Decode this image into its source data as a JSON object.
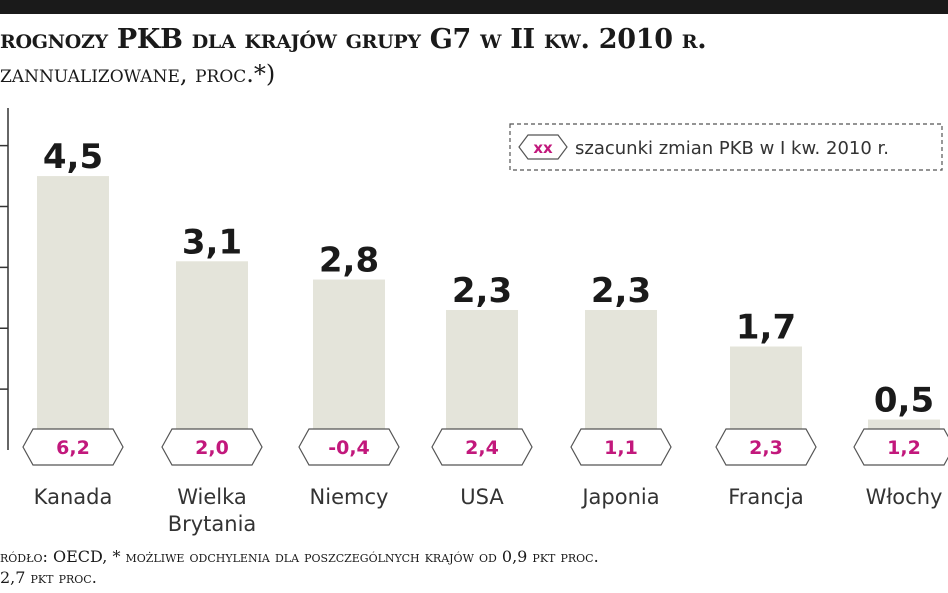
{
  "header": {
    "title": "rognozy PKB dla krajów grupy G7 w II kw. 2010 r.",
    "subtitle": "zannualizowane, proc.*)"
  },
  "legend": {
    "badge": "xx",
    "text": "szacunki zmian PKB w I kw. 2010 r."
  },
  "footer": {
    "line1": "ródło: OECD, * możliwe odchylenia dla poszczególnych krajów od 0,9 pkt proc.",
    "line2": "2,7 pkt proc."
  },
  "colors": {
    "bar": "#e4e4da",
    "badge_text": "#c2187c",
    "axis": "#333333",
    "top_bar": "#1a1a1a"
  },
  "chart_data": {
    "type": "bar",
    "categories": [
      "Kanada",
      "Wielka Brytania",
      "Niemcy",
      "USA",
      "Japonia",
      "Francja",
      "Włochy"
    ],
    "category_lines": [
      [
        "Kanada"
      ],
      [
        "Wielka",
        "Brytania"
      ],
      [
        "Niemcy"
      ],
      [
        "USA"
      ],
      [
        "Japonia"
      ],
      [
        "Francja"
      ],
      [
        "Włochy"
      ]
    ],
    "values": [
      4.5,
      3.1,
      2.8,
      2.3,
      2.3,
      1.7,
      0.5
    ],
    "value_labels": [
      "4,5",
      "3,1",
      "2,8",
      "2,3",
      "2,3",
      "1,7",
      "0,5"
    ],
    "q1_estimates": [
      6.2,
      2.0,
      -0.4,
      2.4,
      1.1,
      2.3,
      1.2
    ],
    "q1_estimate_labels": [
      "6,2",
      "2,0",
      "-0,4",
      "2,4",
      "1,1",
      "2,3",
      "1,2"
    ],
    "ylim": [
      0,
      5
    ],
    "grid": false,
    "legend_position": "top-right"
  }
}
